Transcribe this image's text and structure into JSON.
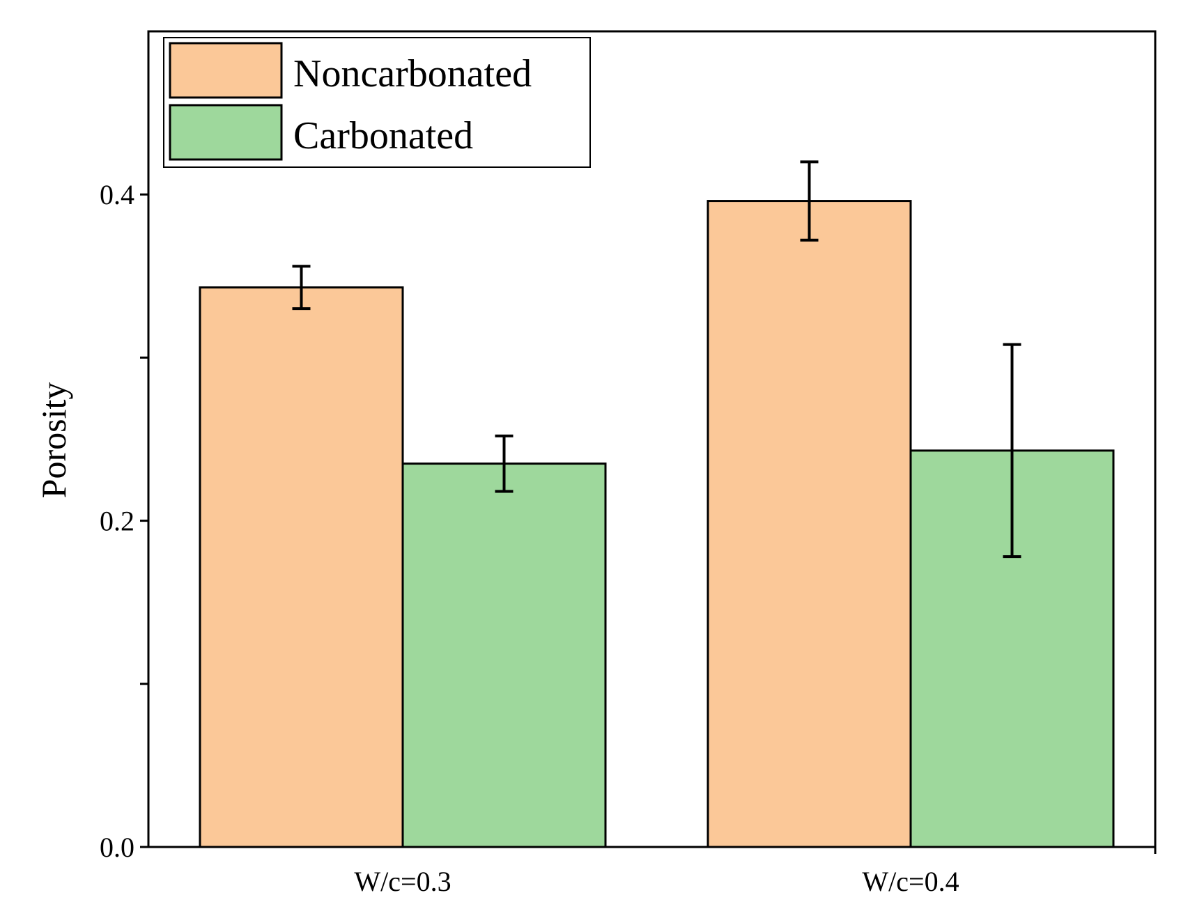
{
  "chart_data": {
    "type": "bar",
    "title": "",
    "xlabel": "",
    "ylabel": "Porosity",
    "ylim": [
      0,
      0.5
    ],
    "yticks_labeled": [
      "0.0",
      "0.2",
      "0.4"
    ],
    "yticks_values": [
      0.0,
      0.2,
      0.4
    ],
    "yticks_minor": [
      0.1,
      0.3
    ],
    "categories": [
      "W/c=0.3",
      "W/c=0.4"
    ],
    "series": [
      {
        "name": "Noncarbonated",
        "color": "#FBC898",
        "values": [
          0.343,
          0.396
        ],
        "errors": [
          0.013,
          0.024
        ]
      },
      {
        "name": "Carbonated",
        "color": "#9ED89C",
        "values": [
          0.235,
          0.243
        ],
        "errors": [
          0.017,
          0.065
        ]
      }
    ],
    "legend_position": "top-left",
    "grid": false
  }
}
